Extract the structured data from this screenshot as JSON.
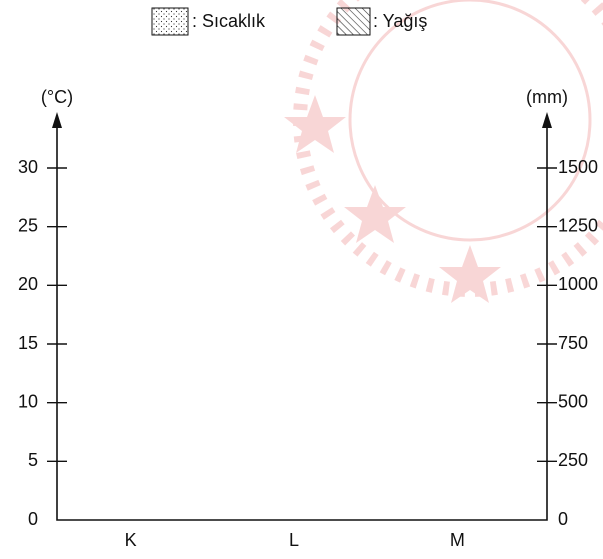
{
  "chart_data": {
    "type": "bar",
    "categories": [
      "K",
      "L",
      "M"
    ],
    "series": [
      {
        "name": ": Sıcaklık",
        "pattern": "dots",
        "color": "#000000",
        "values": [
          null,
          null,
          null
        ]
      },
      {
        "name": ": Yağış",
        "pattern": "hatch",
        "color": "#000000",
        "axis": "y2",
        "values": [
          null,
          null,
          null
        ]
      }
    ],
    "ylabel": "(°C)",
    "y2label": "(mm)",
    "ylim": [
      0,
      30
    ],
    "yticks": [
      0,
      5,
      10,
      15,
      20,
      25,
      30
    ],
    "y2lim": [
      0,
      1500
    ],
    "y2ticks": [
      0,
      250,
      500,
      750,
      1000,
      1250,
      1500
    ]
  }
}
